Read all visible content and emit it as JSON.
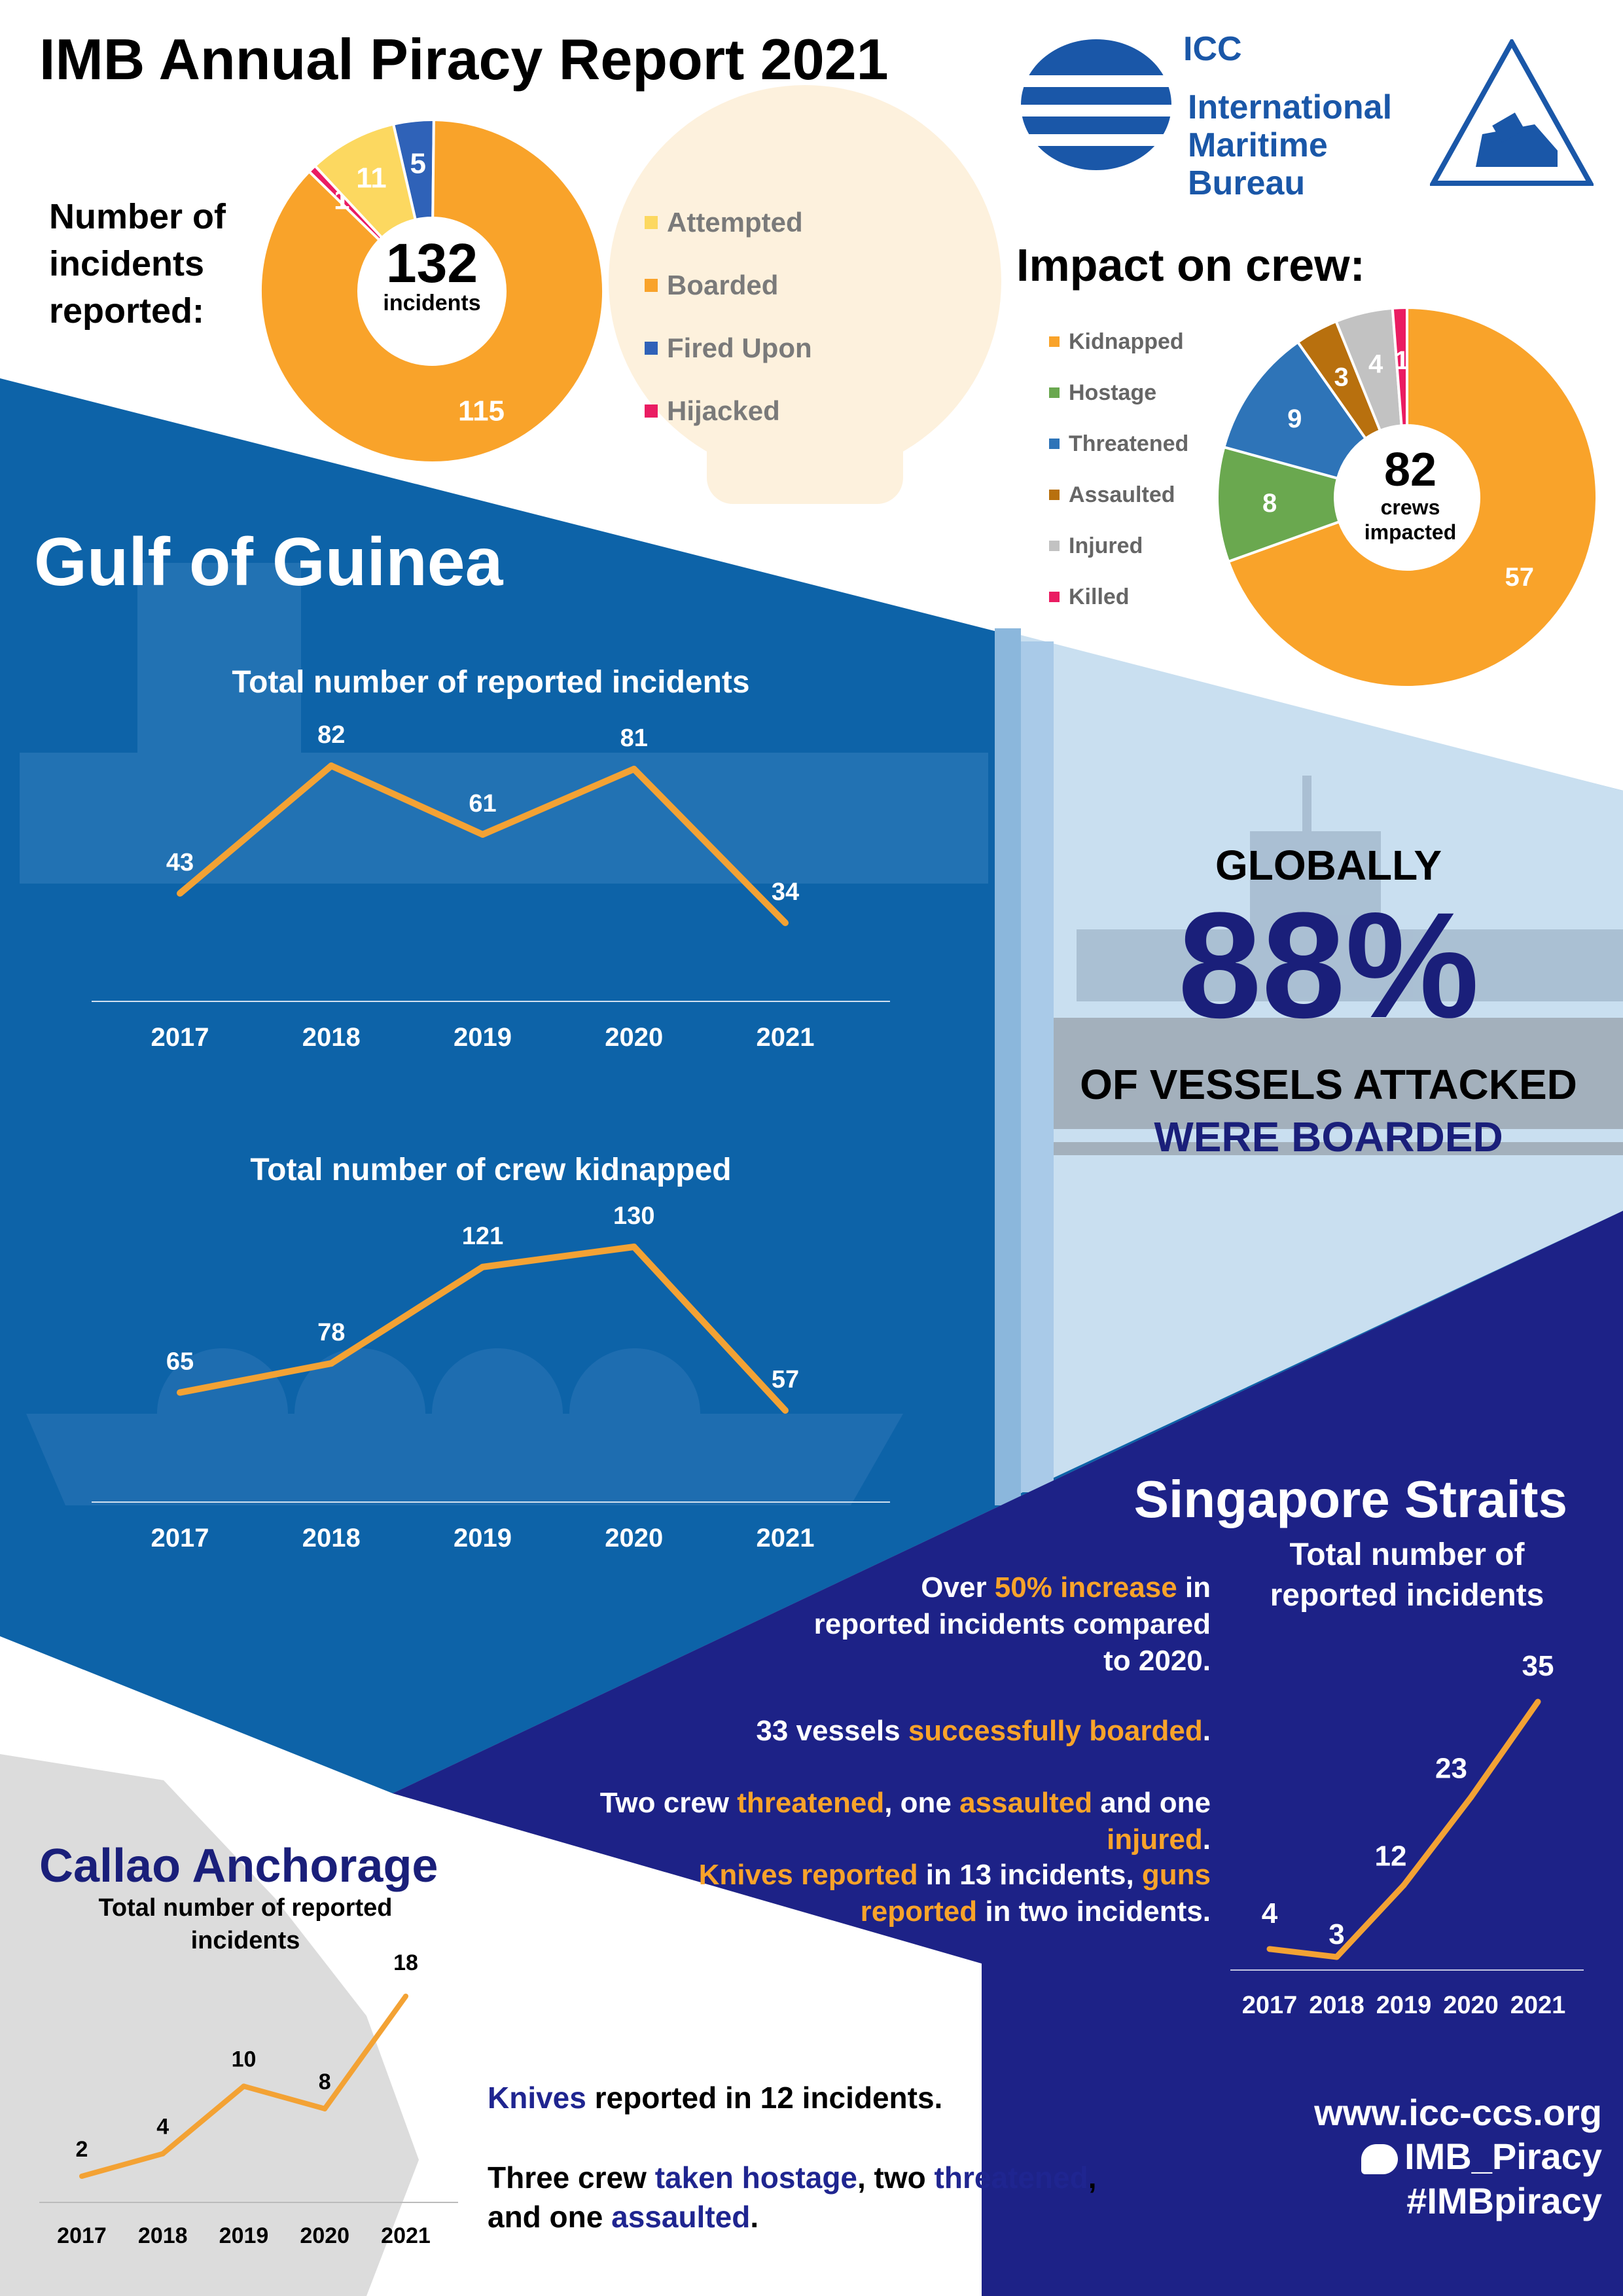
{
  "header": {
    "title": "IMB Annual Piracy Report 2021",
    "incidents_label": [
      "Number of",
      "incidents",
      "reported:"
    ],
    "logo_icc": "ICC",
    "logo_name": [
      "International",
      "Maritime",
      "Bureau"
    ]
  },
  "incidents_donut": {
    "total": "132",
    "total_label": "incidents"
  },
  "impact": {
    "title": "Impact on crew:",
    "total": "82",
    "total_label": [
      "crews",
      "impacted"
    ]
  },
  "gulf": {
    "title": "Gulf of Guinea"
  },
  "global": {
    "line1": "GLOBALLY",
    "line2": "88%",
    "line3": "OF VESSELS ATTACKED",
    "line4": "WERE BOARDED"
  },
  "singapore": {
    "title": "Singapore Straits",
    "subtitle": [
      "Total number of",
      "reported incidents"
    ],
    "fact1": [
      "Over ",
      "50% increase",
      " in",
      "reported incidents compared",
      "to 2020."
    ],
    "fact2": [
      "33 vessels ",
      "successfully boarded",
      "."
    ],
    "fact3": [
      "Two crew ",
      "threatened",
      ", one ",
      "assaulted",
      " and one ",
      "injured",
      "."
    ],
    "fact4": [
      "Knives reported",
      " in 13 incidents, ",
      "guns",
      "reported",
      " in two incidents."
    ]
  },
  "callao": {
    "title": "Callao Anchorage",
    "subtitle": [
      "Total number of reported",
      "incidents"
    ],
    "fact1": [
      "Knives",
      " reported in 12 incidents."
    ],
    "fact2": [
      "Three crew ",
      "taken hostage",
      ", two ",
      "threatened",
      ","
    ],
    "fact3": [
      "and one ",
      "assaulted",
      "."
    ]
  },
  "social": {
    "website": "www.icc-ccs.org",
    "twitter": "IMB_Piracy",
    "hashtag": "#IMBpiracy"
  },
  "colors": {
    "orange": "#f9a32a",
    "yellow": "#fcd860",
    "blue_fired": "#2f62b8",
    "pink": "#ea1c62",
    "green": "#6aa84f",
    "brown": "#b8700e",
    "grey": "#c2c2c2",
    "threat_blue": "#2e74b8",
    "gulf_blue": "#0d63a8",
    "navy": "#1a1f7a"
  },
  "chart_data": [
    {
      "type": "pie",
      "name": "incidents",
      "slices": [
        {
          "label": "Attempted",
          "value": 11,
          "color": "#fcd860"
        },
        {
          "label": "Boarded",
          "value": 115,
          "color": "#f9a32a"
        },
        {
          "label": "Fired Upon",
          "value": 5,
          "color": "#2f62b8"
        },
        {
          "label": "Hijacked",
          "value": 1,
          "color": "#ea1c62"
        }
      ],
      "order": [
        "Fired Upon",
        "Boarded",
        "Hijacked",
        "Attempted"
      ]
    },
    {
      "type": "pie",
      "name": "impact",
      "slices": [
        {
          "label": "Kidnapped",
          "value": 57,
          "color": "#f9a32a"
        },
        {
          "label": "Hostage",
          "value": 8,
          "color": "#6aa84f"
        },
        {
          "label": "Threatened",
          "value": 9,
          "color": "#2e74b8"
        },
        {
          "label": "Assaulted",
          "value": 3,
          "color": "#b8700e"
        },
        {
          "label": "Injured",
          "value": 4,
          "color": "#c2c2c2"
        },
        {
          "label": "Killed",
          "value": 1,
          "color": "#ea1c62"
        }
      ]
    },
    {
      "type": "line",
      "name": "gulf_incidents",
      "title": "Total number of reported incidents",
      "x": [
        "2017",
        "2018",
        "2019",
        "2020",
        "2021"
      ],
      "values": [
        43,
        82,
        61,
        81,
        34
      ]
    },
    {
      "type": "line",
      "name": "gulf_kidnapped",
      "title": "Total number of crew kidnapped",
      "x": [
        "2017",
        "2018",
        "2019",
        "2020",
        "2021"
      ],
      "values": [
        65,
        78,
        121,
        130,
        57
      ]
    },
    {
      "type": "line",
      "name": "singapore_incidents",
      "x": [
        "2017",
        "2018",
        "2019",
        "2020",
        "2021"
      ],
      "values": [
        4,
        3,
        12,
        23,
        35
      ]
    },
    {
      "type": "line",
      "name": "callao_incidents",
      "x": [
        "2017",
        "2018",
        "2019",
        "2020",
        "2021"
      ],
      "values": [
        2,
        4,
        10,
        8,
        18
      ]
    }
  ]
}
